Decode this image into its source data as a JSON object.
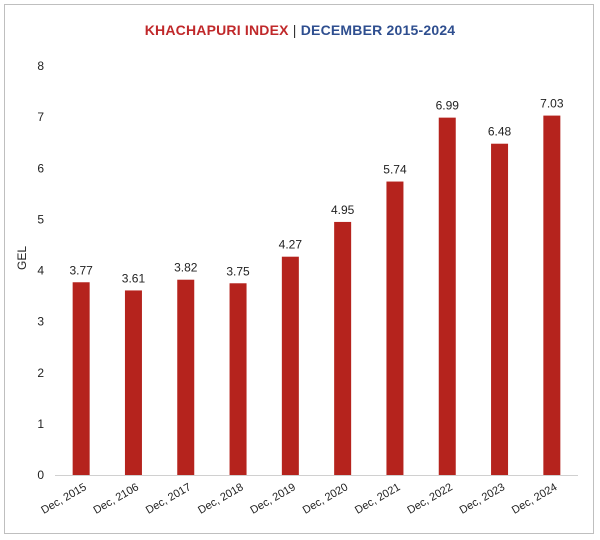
{
  "title": {
    "part1": "KHACHAPURI INDEX",
    "separator": " | ",
    "part2": "DECEMBER 2015-2024"
  },
  "colors": {
    "bar": "#b5231d",
    "title_red": "#c0282a",
    "title_blue": "#2e4e8f"
  },
  "chart_data": {
    "type": "bar",
    "title": "KHACHAPURI INDEX | DECEMBER 2015-2024",
    "xlabel": "",
    "ylabel": "GEL",
    "ylim": [
      0,
      8
    ],
    "yticks": [
      0,
      1,
      2,
      3,
      4,
      5,
      6,
      7,
      8
    ],
    "grid": false,
    "legend": "none",
    "categories": [
      "Dec, 2015",
      "Dec, 2106",
      "Dec, 2017",
      "Dec, 2018",
      "Dec, 2019",
      "Dec, 2020",
      "Dec, 2021",
      "Dec, 2022",
      "Dec, 2023",
      "Dec, 2024"
    ],
    "values": [
      3.77,
      3.61,
      3.82,
      3.75,
      4.27,
      4.95,
      5.74,
      6.99,
      6.48,
      7.03
    ],
    "value_labels": [
      "3.77",
      "3.61",
      "3.82",
      "3.75",
      "4.27",
      "4.95",
      "5.74",
      "6.99",
      "6.48",
      "7.03"
    ]
  }
}
